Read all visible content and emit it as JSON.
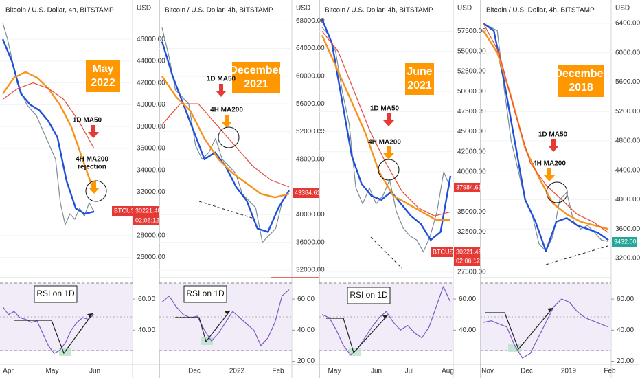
{
  "chart_data": [
    {
      "type": "line",
      "title": "Bitcoin / U.S. Dollar, 4h, BITSTAMP",
      "unit": "USD",
      "headline": [
        "May",
        "2022"
      ],
      "ma50": "1D MA50",
      "ma200": [
        "4H MA200",
        "rejection"
      ],
      "rsi_label": "RSI on 1D",
      "tags": [
        "BTCUSD",
        "30221.48",
        "02:06:12"
      ],
      "x_labels": [
        "Apr",
        "May",
        "Jun"
      ],
      "ylim": [
        24400,
        49600
      ],
      "yticks": [
        {
          "value": 46000,
          "label": "46000.00"
        },
        {
          "value": 44000,
          "label": "44000.00"
        },
        {
          "value": 42000,
          "label": "42000.00"
        },
        {
          "value": 40000,
          "label": "40000.00"
        },
        {
          "value": 38000,
          "label": "38000.00"
        },
        {
          "value": 36000,
          "label": "36000.00"
        },
        {
          "value": 34000,
          "label": "34000.00"
        },
        {
          "value": 32000,
          "label": "32000.00"
        },
        {
          "value": 28000,
          "label": "28000.00"
        },
        {
          "value": 26000,
          "label": "26000.00"
        }
      ],
      "rsi_ylim": [
        18,
        72
      ],
      "rsi_yticks": [
        {
          "value": 60,
          "label": "60.00"
        },
        {
          "value": 40,
          "label": "40.00"
        }
      ],
      "series": [
        {
          "color": "#7a8c99",
          "values": [
            47500,
            46000,
            44000,
            42000,
            41000,
            40000,
            39500,
            39000,
            38000,
            37000,
            36000,
            35000,
            31000,
            29000,
            30000,
            29500,
            30500,
            29800,
            31000,
            30200
          ]
        },
        {
          "color": "#2050d8",
          "values": [
            46000,
            44000,
            41000,
            40000,
            39500,
            38500,
            37000,
            33000,
            30500,
            30000,
            30200
          ]
        },
        {
          "color": "#f7931a",
          "values": [
            41000,
            42500,
            43000,
            42500,
            41500,
            40000,
            38000,
            35000,
            32000
          ]
        },
        {
          "color": "#e84a3a",
          "values": [
            40500,
            41500,
            42000,
            41500,
            40500,
            38500,
            36000
          ]
        }
      ],
      "rsi": {
        "color": "#7e57c2",
        "values": [
          55,
          50,
          52,
          48,
          47,
          45,
          46,
          38,
          30,
          25,
          27,
          32,
          40,
          45,
          48,
          47,
          50
        ]
      }
    },
    {
      "type": "line",
      "title": "Bitcoin / U.S. Dollar, 4h, BITSTAMP",
      "unit": "USD",
      "headline": [
        "December",
        "2021"
      ],
      "ma50": "1D MA50",
      "ma200": [
        "4H MA200"
      ],
      "rsi_label": "RSI on 1D",
      "tags": [
        "43384.61"
      ],
      "x_labels": [
        "Dec",
        "2022",
        "Feb"
      ],
      "ylim": [
        31300,
        71000
      ],
      "yticks": [
        {
          "value": 68000,
          "label": "68000.00"
        },
        {
          "value": 64000,
          "label": "64000.00"
        },
        {
          "value": 60000,
          "label": "60000.00"
        },
        {
          "value": 56000,
          "label": "56000.00"
        },
        {
          "value": 52000,
          "label": "52000.00"
        },
        {
          "value": 48000,
          "label": "48000.00"
        },
        {
          "value": 40000,
          "label": "40000.00"
        },
        {
          "value": 36000,
          "label": "36000.00"
        },
        {
          "value": 32000,
          "label": "32000.00"
        }
      ],
      "rsi_ylim": [
        18,
        72
      ],
      "rsi_yticks": [
        {
          "value": 60,
          "label": "60.00"
        },
        {
          "value": 40,
          "label": "40.00"
        },
        {
          "value": 20,
          "label": "20.00"
        }
      ],
      "series": [
        {
          "color": "#7a8c99",
          "values": [
            67000,
            63000,
            58000,
            57000,
            56000,
            50000,
            48000,
            49000,
            51000,
            48000,
            47000,
            46000,
            43000,
            42000,
            41000,
            36000,
            37000,
            38000,
            42000,
            43384
          ]
        },
        {
          "color": "#2050d8",
          "values": [
            65000,
            60000,
            56000,
            52000,
            48000,
            49000,
            47000,
            44000,
            42000,
            38000,
            37500,
            41000,
            43500
          ]
        },
        {
          "color": "#f7931a",
          "values": [
            60000,
            57000,
            55000,
            51000,
            48000,
            46000,
            44500,
            43000,
            42500,
            43000
          ]
        },
        {
          "color": "#e84a3a",
          "values": [
            53000,
            56000,
            56000,
            53000,
            50000,
            47000,
            45000,
            44000
          ]
        }
      ],
      "rsi": {
        "color": "#7e57c2",
        "values": [
          58,
          62,
          55,
          50,
          48,
          49,
          40,
          33,
          38,
          45,
          52,
          48,
          44,
          40,
          30,
          35,
          45,
          62,
          66
        ]
      }
    },
    {
      "type": "line",
      "title": "Bitcoin / U.S. Dollar, 4h, BITSTAMP",
      "unit": "USD",
      "headline": [
        "June",
        "2021"
      ],
      "ma50": "1D MA50",
      "ma200": [
        "4H MA200"
      ],
      "rsi_label": "RSI on 1D",
      "tags": [
        "37984.63",
        "BTCUSD",
        "30221.48",
        "02:06:12"
      ],
      "x_labels": [
        "May",
        "Jun",
        "Jul",
        "Aug"
      ],
      "ylim": [
        27150,
        61400
      ],
      "yticks": [
        {
          "value": 57500,
          "label": "57500.00"
        },
        {
          "value": 55000,
          "label": "55000.00"
        },
        {
          "value": 52500,
          "label": "52500.00"
        },
        {
          "value": 50000,
          "label": "50000.00"
        },
        {
          "value": 47500,
          "label": "47500.00"
        },
        {
          "value": 45000,
          "label": "45000.00"
        },
        {
          "value": 42500,
          "label": "42500.00"
        },
        {
          "value": 40000,
          "label": "40000.00"
        },
        {
          "value": 35000,
          "label": "35000.00"
        },
        {
          "value": 32500,
          "label": "32500.00"
        },
        {
          "value": 27500,
          "label": "27500.00"
        }
      ],
      "rsi_ylim": [
        18,
        72
      ],
      "rsi_yticks": [
        {
          "value": 60,
          "label": "60.00"
        },
        {
          "value": 40,
          "label": "40.00"
        }
      ],
      "series": [
        {
          "color": "#7a8c99",
          "values": [
            58000,
            57000,
            55000,
            50000,
            46000,
            38000,
            36000,
            38000,
            36000,
            37000,
            39000,
            35000,
            33000,
            32000,
            31500,
            30000,
            32000,
            35000,
            40000,
            37985
          ]
        },
        {
          "color": "#2050d8",
          "values": [
            59000,
            56000,
            49000,
            42000,
            38500,
            37000,
            36500,
            37500,
            36000,
            34500,
            33500,
            31500,
            32500,
            39500
          ]
        },
        {
          "color": "#f7931a",
          "values": [
            57000,
            53000,
            49000,
            45000,
            40000,
            37000,
            36000,
            35000,
            34000,
            34000
          ]
        },
        {
          "color": "#e84a3a",
          "values": [
            57500,
            55000,
            50000,
            45000,
            41000,
            37500,
            35500,
            34500,
            35000
          ]
        }
      ],
      "rsi": {
        "color": "#7e57c2",
        "values": [
          50,
          48,
          40,
          30,
          24,
          28,
          35,
          42,
          48,
          52,
          45,
          40,
          43,
          38,
          35,
          42,
          55,
          68,
          58
        ]
      }
    },
    {
      "type": "line",
      "title": "Bitcoin / U.S. Dollar, 4h, BITSTAMP",
      "unit": "USD",
      "headline": [
        "December",
        "2018"
      ],
      "ma50": "1D MA50",
      "ma200": [
        "4H MA200"
      ],
      "rsi_label": "",
      "tags": [
        "3432.00"
      ],
      "x_labels": [
        "Nov",
        "Dec",
        "2019",
        "Feb"
      ],
      "ylim": [
        2976,
        6718
      ],
      "yticks": [
        {
          "value": 6400,
          "label": "6400.00"
        },
        {
          "value": 6000,
          "label": "6000.00"
        },
        {
          "value": 5600,
          "label": "5600.00"
        },
        {
          "value": 5200,
          "label": "5200.00"
        },
        {
          "value": 4800,
          "label": "4800.00"
        },
        {
          "value": 4400,
          "label": "4400.00"
        },
        {
          "value": 4000,
          "label": "4000.00"
        },
        {
          "value": 3600,
          "label": "3600.00"
        },
        {
          "value": 3200,
          "label": "3200.00"
        }
      ],
      "rsi_ylim": [
        18,
        72
      ],
      "rsi_yticks": [
        {
          "value": 60,
          "label": "60.00"
        },
        {
          "value": 40,
          "label": "40.00"
        },
        {
          "value": 20,
          "label": "20.00"
        }
      ],
      "series": [
        {
          "color": "#7a8c99",
          "values": [
            6400,
            6350,
            6300,
            5500,
            4800,
            4400,
            4000,
            3800,
            3400,
            3300,
            3500,
            4000,
            4100,
            3700,
            3600,
            3650,
            3550,
            3450,
            3432
          ]
        },
        {
          "color": "#2050d8",
          "values": [
            6400,
            6300,
            5600,
            4800,
            4000,
            3700,
            3300,
            3700,
            3750,
            3650,
            3600,
            3550,
            3450
          ]
        },
        {
          "color": "#f7931a",
          "values": [
            6300,
            6000,
            5400,
            4700,
            4300,
            3950,
            3800,
            3700,
            3650,
            3600
          ]
        },
        {
          "color": "#e84a3a",
          "values": [
            6400,
            6000,
            5200,
            4500,
            4200,
            4000,
            3800,
            3700,
            3550
          ]
        }
      ],
      "rsi": {
        "color": "#7e57c2",
        "values": [
          45,
          46,
          44,
          42,
          30,
          22,
          25,
          35,
          45,
          55,
          60,
          58,
          52,
          48,
          46,
          44,
          42
        ]
      }
    }
  ]
}
